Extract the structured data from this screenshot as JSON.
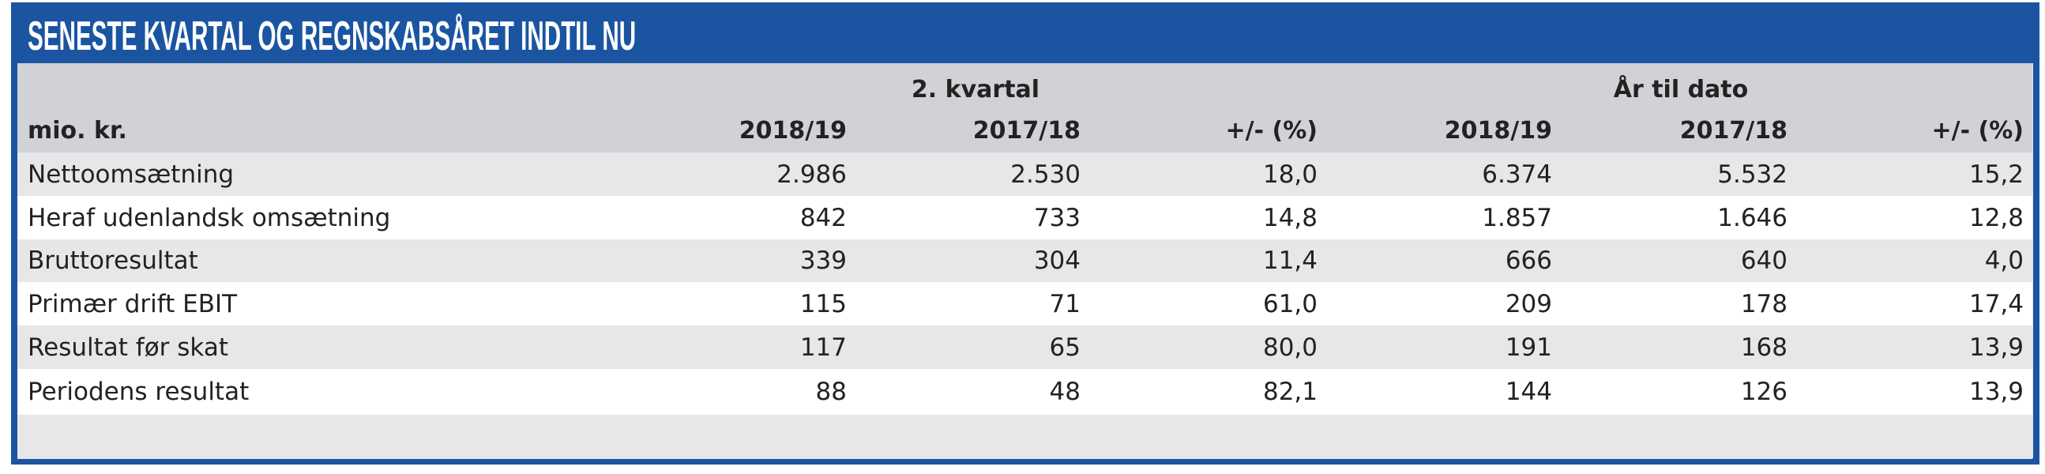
{
  "title": "SENESTE KVARTAL OG REGNSKABSÅRET INDTIL NU",
  "colors": {
    "frame_blue": "#1b55a1",
    "header_gray": "#d1d2d6",
    "row_gray": "#e7e7e9",
    "row_white": "#ffffff"
  },
  "groups": [
    {
      "label": "2. kvartal"
    },
    {
      "label": "År til dato"
    }
  ],
  "columns": {
    "label": "mio. kr.",
    "headers": [
      "2018/19",
      "2017/18",
      "+/- (%)",
      "2018/19",
      "2017/18",
      "+/- (%)"
    ]
  },
  "rows": [
    {
      "label": "Nettoomsætning",
      "values": [
        "2.986",
        "2.530",
        "18,0",
        "6.374",
        "5.532",
        "15,2"
      ]
    },
    {
      "label": "Heraf udenlandsk omsætning",
      "values": [
        "842",
        "733",
        "14,8",
        "1.857",
        "1.646",
        "12,8"
      ]
    },
    {
      "label": "Bruttoresultat",
      "values": [
        "339",
        "304",
        "11,4",
        "666",
        "640",
        "4,0"
      ]
    },
    {
      "label": "Primær drift EBIT",
      "values": [
        "115",
        "71",
        "61,0",
        "209",
        "178",
        "17,4"
      ]
    },
    {
      "label": "Resultat før skat",
      "values": [
        "117",
        "65",
        "80,0",
        "191",
        "168",
        "13,9"
      ]
    },
    {
      "label": "Periodens resultat",
      "values": [
        "88",
        "48",
        "82,1",
        "144",
        "126",
        "13,9"
      ]
    }
  ]
}
